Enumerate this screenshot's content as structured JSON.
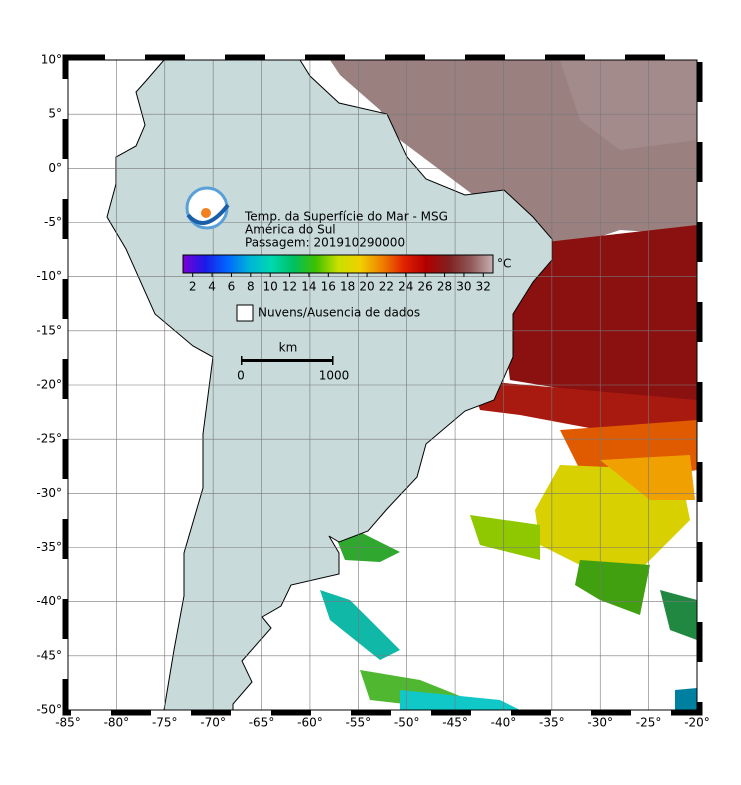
{
  "map": {
    "title_lines": [
      "Temp. da Superfície do Mar - MSG",
      "América do Sul",
      "Passagem: 201910290000"
    ],
    "lon_range": [
      -85,
      -20
    ],
    "lat_range": [
      -50,
      10
    ],
    "lon_ticks": [
      {
        "value": -85,
        "label": "-85°"
      },
      {
        "value": -80,
        "label": "-80°"
      },
      {
        "value": -75,
        "label": "-75°"
      },
      {
        "value": -70,
        "label": "-70°"
      },
      {
        "value": -65,
        "label": "-65°"
      },
      {
        "value": -60,
        "label": "-60°"
      },
      {
        "value": -55,
        "label": "-55°"
      },
      {
        "value": -50,
        "label": "-50°"
      },
      {
        "value": -45,
        "label": "-45°"
      },
      {
        "value": -40,
        "label": "-40°"
      },
      {
        "value": -35,
        "label": "-35°"
      },
      {
        "value": -30,
        "label": "-30°"
      },
      {
        "value": -25,
        "label": "-25°"
      },
      {
        "value": -20,
        "label": "-20°"
      }
    ],
    "lat_ticks": [
      {
        "value": 10,
        "label": "10°"
      },
      {
        "value": 5,
        "label": "5°"
      },
      {
        "value": 0,
        "label": "0°"
      },
      {
        "value": -5,
        "label": "-5°"
      },
      {
        "value": -10,
        "label": "-10°"
      },
      {
        "value": -15,
        "label": "-15°"
      },
      {
        "value": -20,
        "label": "-20°"
      },
      {
        "value": -25,
        "label": "-25°"
      },
      {
        "value": -30,
        "label": "-30°"
      },
      {
        "value": -35,
        "label": "-35°"
      },
      {
        "value": -40,
        "label": "-40°"
      },
      {
        "value": -45,
        "label": "-45°"
      },
      {
        "value": -50,
        "label": "-50°"
      }
    ],
    "colorbar": {
      "unit": "°C",
      "range": [
        1,
        33
      ],
      "ticks": [
        2,
        4,
        6,
        8,
        10,
        12,
        14,
        16,
        18,
        20,
        22,
        24,
        26,
        28,
        30,
        32
      ],
      "colors": [
        "#7a00d8",
        "#1a1ae8",
        "#0066ff",
        "#00b4d8",
        "#00d8b0",
        "#00c060",
        "#40c000",
        "#c8e000",
        "#f0d000",
        "#f08000",
        "#e02000",
        "#b00000",
        "#802020",
        "#905858",
        "#c8b0b0"
      ]
    },
    "legend_label": "Nuvens/Ausencia de dados",
    "scale_bar": {
      "unit": "km",
      "start": "0",
      "end": "1000"
    }
  }
}
